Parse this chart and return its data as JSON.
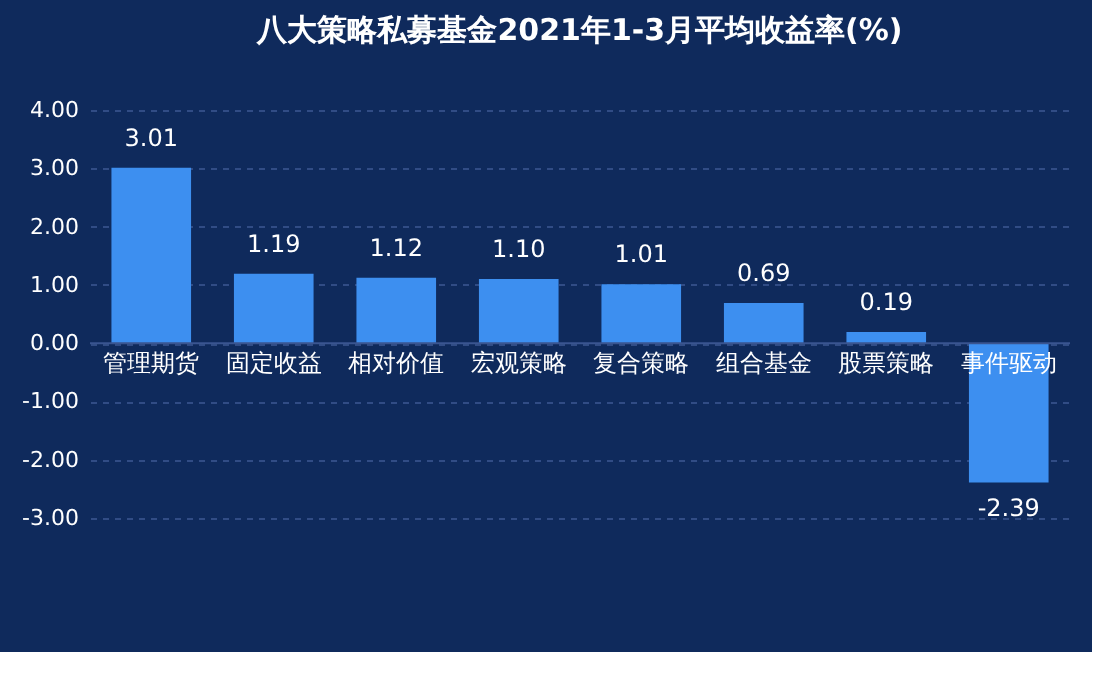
{
  "chart_data": {
    "type": "bar",
    "title": "八大策略私募基金2021年1-3月平均收益率(%)",
    "categories": [
      "管理期货",
      "固定收益",
      "相对价值",
      "宏观策略",
      "复合策略",
      "组合基金",
      "股票策略",
      "事件驱动"
    ],
    "values": [
      3.01,
      1.19,
      1.12,
      1.1,
      1.01,
      0.69,
      0.19,
      -2.39
    ],
    "value_labels": [
      "3.01",
      "1.19",
      "1.12",
      "1.10",
      "1.01",
      "0.69",
      "0.19",
      "-2.39"
    ],
    "color": "#3d8ff0",
    "ylim": [
      -3,
      4
    ],
    "yticks": [
      {
        "value": -3,
        "label": "-3.00"
      },
      {
        "value": -2,
        "label": "-2.00"
      },
      {
        "value": -1,
        "label": "-1.00"
      },
      {
        "value": 0,
        "label": "0.00"
      },
      {
        "value": 1,
        "label": "1.00"
      },
      {
        "value": 2,
        "label": "2.00"
      },
      {
        "value": 3,
        "label": "3.00"
      },
      {
        "value": 4,
        "label": "4.00"
      }
    ],
    "grid": "y"
  }
}
